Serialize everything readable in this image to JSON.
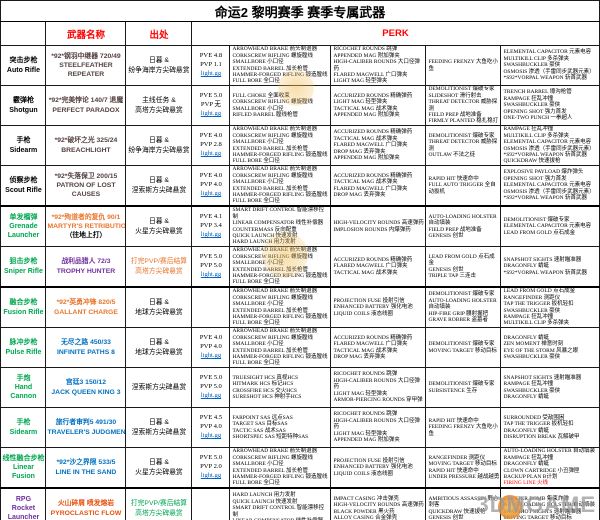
{
  "title": "命运2 黎明赛季 赛季专属武器",
  "header": {
    "weapon_name": "武器名称",
    "source": "出处",
    "perk": "PERK"
  },
  "watermark": {
    "logo_text": "3DMGAME"
  },
  "colors": {
    "accent_red": "#FF0000",
    "green": "#00A651",
    "purple": "#7030A0",
    "blue": "#0070C0",
    "orange": "#E8762C",
    "link_blue": "#0563C1"
  },
  "thick_rows": [
    4,
    6,
    11
  ],
  "rows": [
    {
      "type": {
        "c": "black",
        "lines": [
          "突击步枪",
          "Auto Rifle"
        ]
      },
      "name": {
        "c": "dark",
        "lines": [
          "*92*钢羽中继器 720/49",
          "STEELFEATHER",
          "REPEATER"
        ]
      },
      "source": {
        "c": "black",
        "lines": [
          "日暮 &",
          "纷争海岸方尖碑悬赏"
        ]
      },
      "rating": {
        "pve": "PVE 4.8",
        "pvp": "PVP 1.1",
        "link": "light.gg"
      },
      "perks": [
        [
          "ARROWHEAD BRAKE 箭头制退器",
          "CORKSCREW RIFLING 螺旋膛线",
          "SMALLBORE 小口径",
          "EXTENDED BARREL 加长枪管",
          "HAMMER-FORGED RIFLING 锻造膛线",
          "FULL BORE 全口径"
        ],
        [
          "RICOCHET ROUNDS 跳弹",
          "APPENDED MAG 附加弹夹",
          "HIGH-CALIBER ROUNDS 大口径弹药",
          "FLARED MAGWELL 广口弹夹",
          "LIGHT MAG 轻型弹夹"
        ],
        [
          "FEEDING FRENZY 大鱼吃小鱼"
        ],
        [
          "ELEMENTAL CAPACITOR 元素电容",
          "MULTIKILL CLIP 多杀弹夹",
          "SWASHBUCKLER 豪侠",
          "OSMOSIS 渗透（手雷同步武器元素）",
          "*S92*VORPAL WEAPON 斩首武器"
        ]
      ]
    },
    {
      "type": {
        "c": "black",
        "lines": [
          "霰弹枪",
          "Shotgun"
        ]
      },
      "name": {
        "c": "dark",
        "lines": [
          "*92*完美悖论 140/7 退魔",
          "PERFECT PARADOX"
        ]
      },
      "source": {
        "c": "black",
        "lines": [
          "主线任务 &",
          "高塔方尖碑悬赏"
        ]
      },
      "rating": {
        "pve": "PVE 5.0",
        "pvp": "PVP 无",
        "link": "light.gg"
      },
      "perks": [
        [
          "FULL CHOKE 全面收束",
          "CORKSCREW RIFLING 螺旋膛线",
          "SMALLBORE 小口径",
          "RIFLED BARREL 膛线枪管"
        ],
        [
          "ACCURIZED ROUNDS 精确弹药",
          "LIGHT MAG 轻型弹夹",
          "TACTICAL MAG 战术弹夹",
          "APPENDED MAG 附加弹夹"
        ],
        [
          "DEMOLITIONIST 爆破专家",
          "SLIDESHOT 滑行射击",
          "THREAT DETECTOR 威胁探测",
          "FIELD PREP 战地准备",
          "FIRMLY PLANTED 稳扎稳打"
        ],
        [
          "TRENCH BARREL 壕沟枪管",
          "RAMPAGE 狂乱冲撞",
          "SWASHBUCKLER 豪侠",
          "OPENING SHOT 强力首发",
          "ONE-TWO PUNCH 一拳超人"
        ]
      ]
    },
    {
      "type": {
        "c": "black",
        "lines": [
          "手枪",
          "Sidearm"
        ]
      },
      "name": {
        "c": "dark",
        "lines": [
          "*92*破坏之光 325/24",
          "BREACHLIGHT"
        ]
      },
      "source": {
        "c": "black",
        "lines": [
          "日暮 &",
          "纷争海岸方尖碑悬赏"
        ]
      },
      "rating": {
        "pve": "PVE 4.0",
        "pvp": "PVP 2.8",
        "link": "light.gg"
      },
      "perks": [
        [
          "ARROWHEAD BRAKE 箭头制退器",
          "CORKSCREW RIFLING 螺旋膛线",
          "SMALLBORE 小口径",
          "EXTENDED BARREL 加长枪管",
          "HAMMER-FORGED RIFLING 锻造膛线",
          "FULL BORE 全口径"
        ],
        [
          "ACCURIZED ROUNDS 精确弹药",
          "TACTICAL MAG 战术弹夹",
          "FLARED MAGWELL 广口弹夹",
          "DROP MAG 丢弃弹夹",
          "APPENDED MAG 附加弹夹"
        ],
        [
          "DEMOLITIONIST 爆破专家",
          "THREAT DETECTOR 威胁探测",
          "OUTLAW 不法之徒"
        ],
        [
          "RAMPAGE 狂乱冲撞",
          "MULTIKILL CLIP 多杀弹夹",
          "ELEMENTAL CAPACITOR 元素电容",
          "OSMOSIS 渗透（手雷同步武器元素）",
          "*S92*VORPAL WEAPON 斩首武器",
          "QUICKDRAW 快速拔枪"
        ]
      ]
    },
    {
      "type": {
        "c": "black",
        "lines": [
          "侦察步枪",
          "Scout Rifle"
        ]
      },
      "name": {
        "c": "dark",
        "lines": [
          "*92*失落保卫 200/15",
          "PATRON OF LOST",
          "CAUSES"
        ]
      },
      "source": {
        "c": "black",
        "lines": [
          "日暮 &",
          "涅索斯方尖碑悬赏"
        ]
      },
      "rating": {
        "pve": "PVE 4.0",
        "pvp": "PVP 4.0",
        "link": "light.gg"
      },
      "perks": [
        [
          "ARROWHEAD BRAKE 箭头制退器",
          "CORKSCREW RIFLING 螺旋膛线",
          "SMALLBORE 小口径",
          "EXTENDED BARREL 加长枪管",
          "HAMMER-FORGED RIFLING 锻造膛线",
          "FULL BORE 全口径"
        ],
        [
          "ACCURIZED ROUNDS 精确弹药",
          "TACTICAL MAG 战术弹夹",
          "FLARED MAGWELL 广口弹夹",
          "DROP MAG 丢弃弹夹"
        ],
        [
          "RAPID HIT 快速命中",
          "FULL AUTO TRIGGER 全自动扳机"
        ],
        [
          "EXPLOSIVE PAYLOAD 爆炸弹头",
          "OPENING SHOT 强力首发",
          "ELEMENTAL CAPACITOR 元素电容",
          "OSMOSIS 渗透（手雷同步武器元素）",
          "*S92*VORPAL WEAPON 斩首武器"
        ]
      ]
    },
    {
      "type": {
        "c": "green",
        "lines": [
          "单发榴弹",
          "Grenade",
          "Launcher"
        ]
      },
      "name": {
        "c": "orange",
        "lines": [
          "*92*殉道者的复仇 90/1",
          "MARTYR'S RETRIBUTION",
          {
            "t": "（往地上打）",
            "c": "black"
          }
        ]
      },
      "source": {
        "c": "black",
        "lines": [
          "日暮 &",
          "火星方尖碑悬赏"
        ]
      },
      "rating": {
        "pve": "PVE 4.1",
        "pvp": "PVP 3.4",
        "link": "light.gg"
      },
      "perks": [
        [
          "SMART DRIFT CONTROL 智能漂移控制",
          "LINEAR COMPENSATOR 线性补偿器",
          "COUNTERMASS 反向配重",
          "QUICK LAUNCH 快速发射",
          "HARD LAUNCH 用力发射"
        ],
        [
          "HIGH-VELOCITY ROUNDS 高速弹药",
          "IMPLOSION ROUNDS 内爆弹药"
        ],
        [
          "AUTO-LOADING HOLSTER 自动填装",
          "FIELD PREP 战地准备",
          "GENESIS 创世"
        ],
        [
          "DEMOLITIONIST 爆破专家",
          "ELEMENTAL CAPACITOR 元素电容",
          "LEAD FROM GOLD 点石成金"
        ]
      ]
    },
    {
      "type": {
        "c": "green",
        "lines": [
          "狙击步枪",
          "Sniper Rifle"
        ]
      },
      "name": {
        "c": "purple",
        "lines": [
          "战利品猎人 72/3",
          "TROPHY HUNTER"
        ]
      },
      "source": {
        "c": "orange",
        "lines": [
          "打完PVP/赛后结算",
          "高塔方尖碑悬赏"
        ]
      },
      "rating": {
        "pve": "PVE 5.0",
        "pvp": "PVP 5.0",
        "link": "light.gg"
      },
      "perks": [
        [
          "ARROWHEAD BRAKE 箭头制退器",
          "CORKSCREW RIFLING 螺旋膛线",
          "SMALLBORE 小口径",
          "EXTENDED BARREL 加长枪管",
          "HAMMER-FORGED RIFLING 锻造膛线",
          "FULL BORE 全口径"
        ],
        [
          "ACCURIZED ROUNDS 精确弹药",
          "FLARED MAGWELL 广口弹夹",
          "TACTICAL MAG 战术弹夹"
        ],
        [
          "LEAD FROM GOLD 点石成金",
          "GENESIS 创世",
          "TRIPLE TAP 三连击"
        ],
        [
          "SNAPSHOT SIGHTS 速射瞄准器",
          "DRAGONFLY 蜻蜓",
          "*S92*VORPAL WEAPON 斩首武器"
        ]
      ]
    },
    {
      "type": {
        "c": "green",
        "lines": [
          "融合步枪",
          "Fusion Rifle"
        ]
      },
      "name": {
        "c": "orange",
        "lines": [
          "*92*英勇冲锋 820/5",
          "GALLANT CHARGE"
        ]
      },
      "source": {
        "c": "black",
        "lines": [
          "日暮 &",
          "地球方尖碑悬赏"
        ]
      },
      "rating": {},
      "perks": [
        [
          "ARROWHEAD BRAKE 箭头制退器",
          "CORKSCREW RIFLING 螺旋膛线",
          "SMALLBORE 小口径",
          "EXTENDED BARREL 加长枪管",
          "HAMMER-FORGED RIFLING 锻造膛线",
          "FULL BORE 全口径"
        ],
        [
          "PROJECTION FUSE 投射引信",
          "ENHANCED BATTERY 强化电池",
          "LIQUID COILS 液态线圈"
        ],
        [
          "DEMOLITIONIST 爆破专家",
          "AUTO-LOADING HOLSTER 自动填装",
          "HIP-FIRE GRIP 腰射握把",
          "GRAVE ROBBER 盗墓者"
        ],
        [
          "LEAD FROM GOLD 点石成金",
          "RANGEFINDER 测距仪",
          "TAP THE TRIGGER 扳机轻扣",
          "SWASHBUCKLER 豪侠",
          "RAMPAGE 狂乱冲撞",
          "MULTIKILL CLIP 多杀弹夹"
        ]
      ]
    },
    {
      "type": {
        "c": "green",
        "lines": [
          "脉冲步枪",
          "Pulse Rifle"
        ]
      },
      "name": {
        "c": "blue",
        "lines": [
          "无尽之路 450/33",
          "INFINITE PATHS 8"
        ]
      },
      "source": {
        "c": "black",
        "lines": [
          "日暮 &",
          "地球方尖碑悬赏"
        ]
      },
      "rating": {
        "pve": "PVE 4.0",
        "pvp": "PVP 4.0",
        "link": "light.gg"
      },
      "perks": [
        [
          "ARROWHEAD BRAKE 箭头制退器",
          "CORKSCREW RIFLING 螺旋膛线",
          "SMALLBORE 小口径",
          "EXTENDED BARREL 加长枪管",
          "HAMMER-FORGED RIFLING 锻造膛线",
          "FULL BORE 全口径"
        ],
        [
          "ACCURIZED ROUNDS 精确弹药",
          "FLARED MAGWELL 广口弹夹",
          "TACTICAL MAG 战术弹夹",
          "DROP MAG 丢弃弹夹"
        ],
        [
          "DEMOLITIONIST 爆破专家",
          "MOVING TARGET 移动目标"
        ],
        [
          "DRAGONFLY 蜻蜓",
          "ZEN MOMENT 禅意时刻",
          "EYE OF THE STORM 风暴之眼",
          "SWASHBUCKLER 豪侠"
        ]
      ]
    },
    {
      "type": {
        "c": "green",
        "lines": [
          "手炮",
          "Hand Cannon"
        ]
      },
      "name": {
        "c": "blue",
        "lines": [
          "宫廷3 150/12",
          "JACK QUEEN KING 3"
        ]
      },
      "source": {
        "c": "black",
        "lines": [
          "涅索斯方尖碑悬赏"
        ]
      },
      "rating": {
        "pve": "PVE 5.0",
        "pvp": "PVP 5.0",
        "link": "light.gg"
      },
      "perks": [
        [
          "TRUESIGHT HCS 真视HCS",
          "HITMARK HCS 标记HCS",
          "CROSSFIRE HCS 交火HCS",
          "SURESHOT HCS 神射手HCS"
        ],
        [
          "RICOCHET ROUNDS 跳弹",
          "HIGH-CALIBER ROUNDS 大口径弹药",
          "LIGHT MAG 轻型弹夹",
          "ARMOR-PIERCING ROUNDS 穿甲弹"
        ],
        [
          "DEMOLITIONIST 爆破专家",
          "SUBSISTENCE 生存"
        ],
        [
          "SNAPSHOT SIGHTS 速射瞄准器",
          "RAMPAGE 狂乱冲撞",
          "SWASHBUCKLER 豪侠",
          "DRAGONFLY 蜻蜓"
        ]
      ]
    },
    {
      "type": {
        "c": "green",
        "lines": [
          "手枪",
          "Sidearm"
        ]
      },
      "name": {
        "c": "blue",
        "lines": [
          "旅行者审判5 491/30",
          "TRAVELER'S JUDGMENT 5"
        ]
      },
      "source": {
        "c": "black",
        "lines": [
          "日暮 &",
          "涅索斯方尖碑悬赏"
        ]
      },
      "rating": {
        "pve": "PVE 4.5",
        "pvp": "PVP 4.0",
        "link": "light.gg"
      },
      "perks": [
        [
          "FARPOINT SAS 远点SAS",
          "TARGET SAS 目标SAS",
          "TACTIC SAS 战术SAS",
          "SHORTSPEC SAS 短距特种SAS"
        ],
        [
          "RICOCHET ROUNDS 跳弹",
          "HIGH-CALIBER ROUNDS 大口径弹药",
          "LIGHT MAG 轻型弹夹",
          "APPENDED MAG 附加弹夹"
        ],
        [
          "RAPID HIT 快速命中",
          "FEEDING FRENZY 大鱼吃小鱼"
        ],
        [
          "SURROUNDED 受敌围困",
          "TAP THE TRIGGER 扳机轻扣",
          "DRAGONFLY 蜻蜓",
          "DISRUPTION BREAK 瓦解破甲"
        ]
      ]
    },
    {
      "type": {
        "c": "green",
        "lines": [
          "线性融合步枪",
          "Linear",
          "Fusion"
        ]
      },
      "name": {
        "c": "blue",
        "lines": [
          "*92*沙之界限 533/5",
          "LINE IN THE SAND"
        ]
      },
      "source": {
        "c": "black",
        "lines": [
          "日暮 &",
          "火星方尖碑悬赏"
        ]
      },
      "rating": {
        "pve": "PVE 5.0",
        "pvp": "PVP 2.0",
        "link": "light.gg"
      },
      "perks": [
        [
          "ARROWHEAD BRAKE 箭头制退器",
          "CORKSCREW RIFLING 螺旋膛线",
          "SMALLBORE 小口径",
          "EXTENDED BARREL 加长枪管",
          "HAMMER-FORGED RIFLING 锻造膛线",
          "FULL BORE 全口径"
        ],
        [
          "PROJECTION FUSE 投射引信",
          "ENHANCED BATTERY 强化电池",
          "LIQUID COILS 液态线圈"
        ],
        [
          "RANGEFINDER 测距仪",
          "MOVING TARGET 移动目标",
          "RAPID HIT 快速命中",
          "UNDER PRESSURE 越战越勇"
        ],
        [
          "AUTO-LOADING HOLSTER 自动填装",
          "RAMPAGE 狂乱冲撞",
          "DRAGONFLY 蜻蜓",
          "CLOWN CARTRIDGE 小丑弹匣",
          "BACKUP PLAN B计划",
          {
            "t": "FIRING LINE 火线",
            "c": "red"
          }
        ]
      ]
    },
    {
      "type": {
        "c": "purple",
        "lines": [
          "RPG",
          "Rocket",
          "Launcher"
        ]
      },
      "name": {
        "c": "orangered",
        "lines": [
          "火山碎屑 喷发熔岩",
          "PYROCLASTIC FLOW"
        ]
      },
      "source": {
        "c": "green",
        "lines": [
          "打完PVP/赛后结算",
          "高塔方尖碑悬赏"
        ]
      },
      "rating": {},
      "perks": [
        [
          "HARD LAUNCH 用力发射",
          "QUICK LAUNCH 快速发射",
          "SMART DRIFT CONTROL 智能漂移控制",
          "LINEAR COMPENSATOR 线性补偿器"
        ],
        [
          "IMPACT CASING 冲击弹壳",
          "HIGH-VELOCITY ROUNDS 高速弹药",
          "BLACK POWDER 黑火药",
          "ALLOY CASING 合金弹壳"
        ],
        [
          "AMBITIOUS ASSASSIN 野心刺客",
          "QUICKDRAW 快速拔枪",
          "GENESIS 创世"
        ],
        [
          "CLUSTER BOMB 集束炸弹",
          "AUTO-LOADING HOLSTER 自动填装",
          "SNAPSHOT SIGHTS 速射瞄准器",
          "MOVING TARGET 移动目标"
        ]
      ]
    }
  ]
}
